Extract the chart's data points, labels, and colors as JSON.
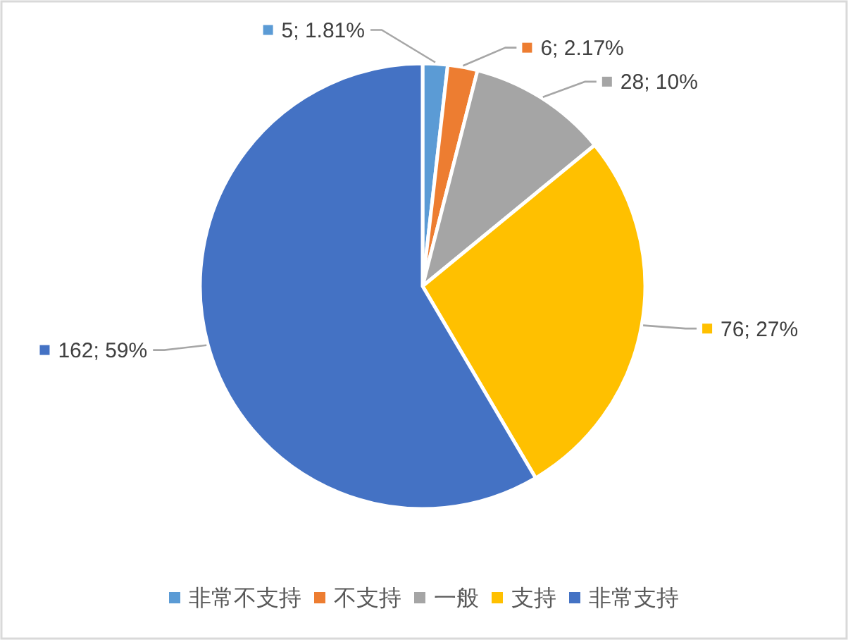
{
  "chart_data": {
    "type": "pie",
    "categories": [
      "非常不支持",
      "不支持",
      "一般",
      "支持",
      "非常支持"
    ],
    "values": [
      5,
      6,
      28,
      76,
      162
    ],
    "colors": [
      "#5b9bd5",
      "#ed7d31",
      "#a5a5a5",
      "#ffc000",
      "#4472c4"
    ],
    "value_labels": [
      "5; 1.81%",
      "6; 2.17%",
      "28; 10%",
      "76; 27%",
      "162; 59%"
    ],
    "legend": "bottom"
  }
}
